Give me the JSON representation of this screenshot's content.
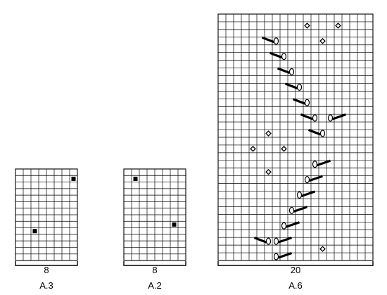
{
  "charts": [
    {
      "id": "a3",
      "name": "A.3",
      "width_label": "8",
      "cols": 8,
      "rows": 14,
      "squares": [
        [
          1,
          7
        ],
        [
          9,
          2
        ]
      ],
      "diamonds": [],
      "slashes": []
    },
    {
      "id": "a2",
      "name": "A.2",
      "width_label": "8",
      "cols": 8,
      "rows": 14,
      "squares": [
        [
          1,
          1
        ],
        [
          8,
          6
        ]
      ],
      "diamonds": [],
      "slashes": []
    },
    {
      "id": "a6",
      "name": "A.6",
      "width_label": "20",
      "cols": 20,
      "rows": 32,
      "squares": [],
      "diamonds": [
        [
          1,
          11
        ],
        [
          1,
          15
        ],
        [
          3,
          13
        ],
        [
          15,
          6
        ],
        [
          17,
          4
        ],
        [
          17,
          8
        ],
        [
          20,
          6
        ],
        [
          30,
          13
        ]
      ],
      "slashes": [
        {
          "row": 3,
          "col": 7,
          "dir": "left"
        },
        {
          "row": 5,
          "col": 8,
          "dir": "left"
        },
        {
          "row": 7,
          "col": 9,
          "dir": "left"
        },
        {
          "row": 9,
          "col": 10,
          "dir": "left"
        },
        {
          "row": 11,
          "col": 11,
          "dir": "left"
        },
        {
          "row": 13,
          "col": 12,
          "dir": "left"
        },
        {
          "row": 13,
          "col": 14,
          "dir": "right"
        },
        {
          "row": 15,
          "col": 13,
          "dir": "left"
        },
        {
          "row": 19,
          "col": 12,
          "dir": "right"
        },
        {
          "row": 21,
          "col": 11,
          "dir": "right"
        },
        {
          "row": 23,
          "col": 10,
          "dir": "right"
        },
        {
          "row": 25,
          "col": 9,
          "dir": "right"
        },
        {
          "row": 27,
          "col": 8,
          "dir": "right"
        },
        {
          "row": 29,
          "col": 6,
          "dir": "left"
        },
        {
          "row": 29,
          "col": 7,
          "dir": "right"
        },
        {
          "row": 31,
          "col": 7,
          "dir": "right"
        }
      ]
    }
  ],
  "colors": {
    "line": "#000000",
    "background": "#ffffff"
  }
}
